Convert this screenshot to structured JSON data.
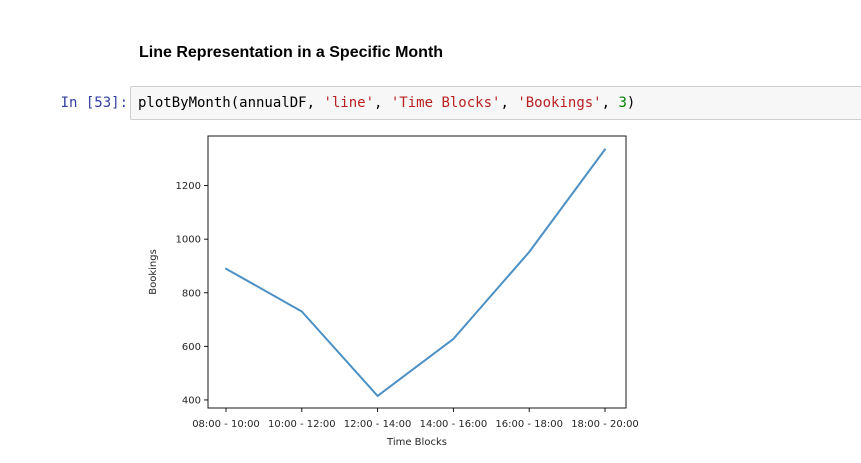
{
  "notebook": {
    "heading": "Line Representation in a Specific Month",
    "cell": {
      "prompt": "In [53]:",
      "code_tokens": [
        {
          "text": "plotByMonth(annualDF, ",
          "kind": "plain"
        },
        {
          "text": "'line'",
          "kind": "str"
        },
        {
          "text": ", ",
          "kind": "punc"
        },
        {
          "text": "'Time Blocks'",
          "kind": "str"
        },
        {
          "text": ", ",
          "kind": "punc"
        },
        {
          "text": "'Bookings'",
          "kind": "str"
        },
        {
          "text": ", ",
          "kind": "punc"
        },
        {
          "text": "3",
          "kind": "num"
        },
        {
          "text": ")",
          "kind": "punc"
        }
      ]
    }
  },
  "chart_data": {
    "type": "line",
    "title": "",
    "xlabel": "Time Blocks",
    "ylabel": "Bookings",
    "categories": [
      "08:00 - 10:00",
      "10:00 - 12:00",
      "12:00 - 14:00",
      "14:00 - 16:00",
      "16:00 - 18:00",
      "18:00 - 20:00"
    ],
    "series": [
      {
        "values": [
          890,
          730,
          415,
          628,
          952,
          1335
        ],
        "color": "#4c90c4"
      }
    ],
    "ylim": [
      370,
      1385
    ],
    "yticks": [
      400,
      600,
      800,
      1000,
      1200
    ],
    "grid": false,
    "legend": "none"
  }
}
